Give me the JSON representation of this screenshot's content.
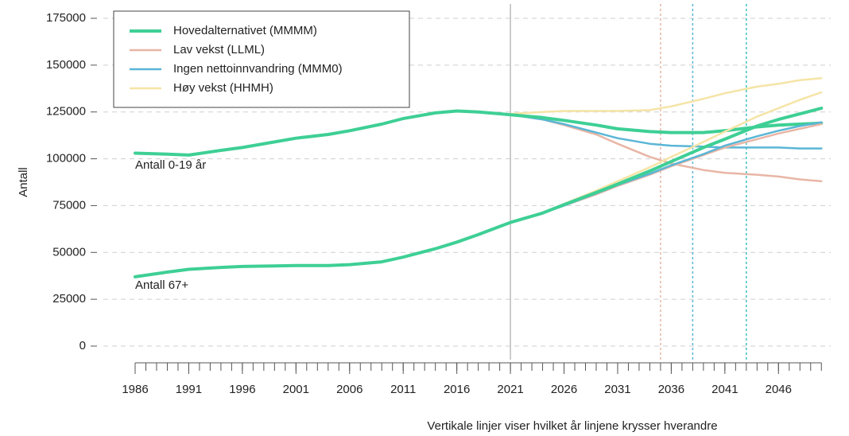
{
  "chart_data": {
    "type": "line",
    "y_label": "Antall",
    "note": "Vertikale linjer viser hvilket år linjene krysser hverandre",
    "x": [
      1986,
      1989,
      1991,
      1994,
      1996,
      1999,
      2001,
      2004,
      2006,
      2009,
      2011,
      2014,
      2016,
      2018,
      2021,
      2024,
      2026,
      2029,
      2031,
      2034,
      2036,
      2039,
      2041,
      2044,
      2046,
      2048,
      2050
    ],
    "xlim": [
      1986,
      2050.5
    ],
    "xticks": [
      1986,
      1991,
      1996,
      2001,
      2006,
      2011,
      2016,
      2021,
      2026,
      2031,
      2036,
      2041,
      2046
    ],
    "minor_tick_step": 1,
    "ylim": [
      0,
      175000
    ],
    "yticks": [
      0,
      25000,
      50000,
      75000,
      100000,
      125000,
      150000,
      175000
    ],
    "grid": true,
    "legend_position": "upper-left",
    "legend": [
      {
        "name": "Hovedalternativet (MMMM)",
        "color": "#3ecf95",
        "width": 4
      },
      {
        "name": "Lav vekst (LLML)",
        "color": "#e8b6a6",
        "width": 2.5
      },
      {
        "name": "Ingen nettoinnvandring (MMM0)",
        "color": "#5ab6d6",
        "width": 2.5
      },
      {
        "name": "Høy vekst (HHMH)",
        "color": "#f5e4a6",
        "width": 2.5
      }
    ],
    "vlines": [
      {
        "x": 2021,
        "color": "#bbbbbb",
        "dash": "none"
      },
      {
        "x": 2035,
        "color": "#e8b6a6",
        "dash": "3 3"
      },
      {
        "x": 2038,
        "color": "#5ab6d6",
        "dash": "3 3"
      },
      {
        "x": 2043,
        "color": "#3ec0c0",
        "dash": "3 3"
      }
    ],
    "groups": [
      {
        "label": "Antall 0-19 år",
        "lines": [
          {
            "values": [
              103000,
              102500,
              102000,
              104500,
              106000,
              109000,
              111000,
              113000,
              115000,
              118500,
              121500,
              124500,
              125500,
              125000,
              123500,
              122000,
              120500,
              118000,
              116000,
              114500,
              114000,
              114000,
              115000,
              117000,
              118000,
              118500,
              119000
            ]
          },
          {
            "values": [
              null,
              null,
              null,
              null,
              null,
              null,
              null,
              null,
              null,
              null,
              null,
              null,
              null,
              null,
              123500,
              121000,
              118000,
              113000,
              108000,
              101000,
              97500,
              94000,
              92500,
              91500,
              90500,
              89000,
              88000
            ]
          },
          {
            "values": [
              null,
              null,
              null,
              null,
              null,
              null,
              null,
              null,
              null,
              null,
              null,
              null,
              null,
              null,
              123500,
              121000,
              118500,
              114000,
              111000,
              108000,
              107000,
              106500,
              106000,
              106000,
              106000,
              105500,
              105500
            ]
          },
          {
            "values": [
              null,
              null,
              null,
              null,
              null,
              null,
              null,
              null,
              null,
              null,
              null,
              null,
              null,
              null,
              124000,
              125000,
              125500,
              125500,
              125500,
              126000,
              128000,
              132000,
              135000,
              138500,
              140000,
              142000,
              143000
            ]
          }
        ]
      },
      {
        "label": "Antall 67+",
        "lines": [
          {
            "values": [
              37000,
              39500,
              41000,
              42000,
              42500,
              42800,
              43000,
              43000,
              43500,
              45000,
              47500,
              52000,
              55500,
              59500,
              66000,
              71000,
              75500,
              82000,
              86500,
              93500,
              98500,
              106000,
              110500,
              117500,
              121000,
              124000,
              127000
            ]
          },
          {
            "values": [
              null,
              null,
              null,
              null,
              null,
              null,
              null,
              null,
              null,
              null,
              null,
              null,
              null,
              null,
              66000,
              71000,
              75000,
              81000,
              85500,
              91500,
              96000,
              102000,
              106000,
              110500,
              113500,
              116000,
              118500
            ]
          },
          {
            "values": [
              null,
              null,
              null,
              null,
              null,
              null,
              null,
              null,
              null,
              null,
              null,
              null,
              null,
              null,
              66000,
              71000,
              75000,
              81500,
              86000,
              92000,
              96500,
              102500,
              107000,
              112000,
              115000,
              117500,
              119500
            ]
          },
          {
            "values": [
              null,
              null,
              null,
              null,
              null,
              null,
              null,
              null,
              null,
              null,
              null,
              null,
              null,
              null,
              66000,
              71000,
              76000,
              83000,
              88000,
              95500,
              101000,
              109000,
              114500,
              122500,
              127000,
              131500,
              135500
            ]
          }
        ]
      }
    ]
  }
}
